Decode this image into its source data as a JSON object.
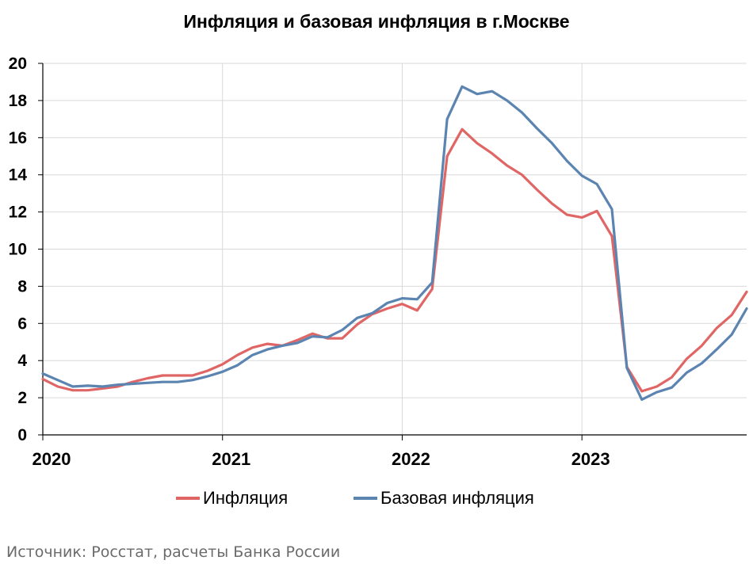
{
  "title": "Инфляция и базовая инфляция в г.Москве",
  "source": "Источник: Росстат, расчеты Банка России",
  "colors": {
    "inflation": "#e06666",
    "core": "#5b84b1",
    "grid": "#d9d9d9"
  },
  "chart_data": {
    "type": "line",
    "title": "Инфляция и базовая инфляция в г.Москве",
    "xlabel": "",
    "ylabel": "",
    "ylim": [
      0,
      20
    ],
    "yticks": [
      0,
      2,
      4,
      6,
      8,
      10,
      12,
      14,
      16,
      18,
      20
    ],
    "xlim": [
      0,
      47
    ],
    "xticks": [
      {
        "x": 0,
        "label": "2020"
      },
      {
        "x": 12,
        "label": "2021"
      },
      {
        "x": 24,
        "label": "2022"
      },
      {
        "x": 36,
        "label": "2023"
      }
    ],
    "grid": true,
    "legend": "bottom",
    "series": [
      {
        "name": "Инфляция",
        "color": "#e06666",
        "x": [
          0,
          1,
          2,
          3,
          4,
          5,
          6,
          7,
          8,
          9,
          10,
          11,
          12,
          13,
          14,
          15,
          16,
          17,
          18,
          19,
          20,
          21,
          22,
          23,
          24,
          25,
          26,
          27,
          28,
          29,
          30,
          31,
          32,
          33,
          34,
          35,
          36,
          37,
          38,
          39,
          40,
          41,
          42,
          43,
          44,
          45,
          46,
          47
        ],
        "values": [
          3.0,
          2.6,
          2.4,
          2.4,
          2.5,
          2.6,
          2.85,
          3.05,
          3.2,
          3.2,
          3.2,
          3.45,
          3.8,
          4.3,
          4.7,
          4.9,
          4.8,
          5.1,
          5.45,
          5.2,
          5.2,
          5.95,
          6.5,
          6.8,
          7.05,
          6.7,
          7.85,
          15.0,
          16.45,
          15.7,
          15.15,
          14.5,
          14.0,
          13.2,
          12.45,
          11.85,
          11.7,
          12.05,
          10.7,
          3.65,
          2.35,
          2.6,
          3.1,
          4.1,
          4.8,
          5.75,
          6.45,
          7.7
        ]
      },
      {
        "name": "Базовая инфляция",
        "color": "#5b84b1",
        "x": [
          0,
          1,
          2,
          3,
          4,
          5,
          6,
          7,
          8,
          9,
          10,
          11,
          12,
          13,
          14,
          15,
          16,
          17,
          18,
          19,
          20,
          21,
          22,
          23,
          24,
          25,
          26,
          27,
          28,
          29,
          30,
          31,
          32,
          33,
          34,
          35,
          36,
          37,
          38,
          39,
          40,
          41,
          42,
          43,
          44,
          45,
          46,
          47
        ],
        "values": [
          3.3,
          2.95,
          2.6,
          2.65,
          2.6,
          2.7,
          2.75,
          2.8,
          2.85,
          2.85,
          2.95,
          3.15,
          3.4,
          3.75,
          4.3,
          4.6,
          4.8,
          4.95,
          5.3,
          5.25,
          5.65,
          6.3,
          6.55,
          7.1,
          7.35,
          7.3,
          8.2,
          17.0,
          18.75,
          18.35,
          18.5,
          18.0,
          17.35,
          16.5,
          15.7,
          14.75,
          13.95,
          13.5,
          12.15,
          3.6,
          1.9,
          2.3,
          2.55,
          3.35,
          3.85,
          4.6,
          5.4,
          6.8
        ]
      }
    ]
  }
}
